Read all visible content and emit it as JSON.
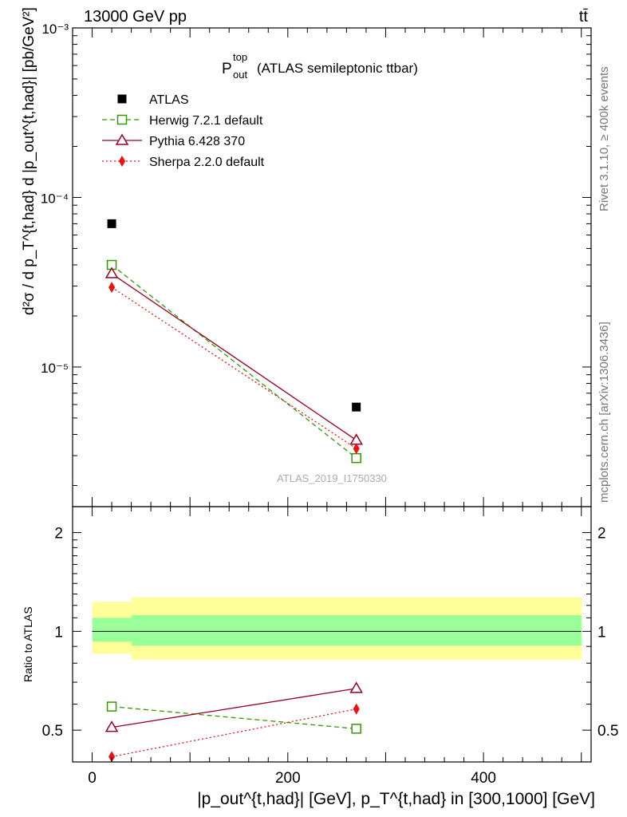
{
  "header": {
    "energy": "13000 GeV pp",
    "process": "tt̄"
  },
  "side": {
    "rivet": "Rivet 3.1.10, ≥ 400k events",
    "mcplots": "mcplots.cern.ch [arXiv:1306.3436]"
  },
  "labels": {
    "title_main": "P",
    "title_sup": "top",
    "title_sub": "out",
    "title_rest": "(ATLAS semileptonic ttbar)",
    "ylabel_text": "d²σ / d p_T^{t,had} d |p_out^{t,had}| [pb/GeV²]",
    "ratio_ylabel": "Ratio to ATLAS",
    "xlabel_text": "|p_out^{t,had}| [GeV], p_T^{t,had} in [300,1000] [GeV]",
    "watermark": "ATLAS_2019_I1750330"
  },
  "chart_data": {
    "type": "scatter",
    "title": "P_out^top (ATLAS semileptonic ttbar)",
    "xlabel": "|p_out^{t,had}| [GeV], p_T^{t,had} in [300,1000] [GeV]",
    "ylabel": "d²σ / d p_T^{t,had} d |p_out^{t,had}| [pb/GeV²]",
    "xlim": [
      -20,
      510
    ],
    "main": {
      "yscale": "log",
      "ylim": [
        1.5e-06,
        0.001
      ],
      "ytick_labels": [
        "10⁻⁵",
        "10⁻⁴",
        "10⁻³"
      ],
      "series": [
        {
          "name": "ATLAS",
          "style": "data",
          "color": "#000000",
          "x": [
            20,
            270
          ],
          "y": [
            7e-05,
            5.8e-06
          ]
        },
        {
          "name": "Herwig 7.2.1 default",
          "style": "dashed",
          "marker": "open-square",
          "color": "#339900",
          "x": [
            20,
            270
          ],
          "y": [
            4e-05,
            2.9e-06
          ]
        },
        {
          "name": "Pythia 6.428 370",
          "style": "solid",
          "marker": "open-triangle",
          "color": "#990022",
          "x": [
            20,
            270
          ],
          "y": [
            3.55e-05,
            3.7e-06
          ]
        },
        {
          "name": "Sherpa 2.2.0 default",
          "style": "dotted",
          "marker": "filled-diamond",
          "color": "#ee1111",
          "x": [
            20,
            270
          ],
          "y": [
            2.95e-05,
            3.3e-06
          ]
        }
      ]
    },
    "ratio": {
      "ylabel": "Ratio to ATLAS",
      "yscale": "log",
      "ylim": [
        0.4,
        2.4
      ],
      "ytick_labels": [
        "0.5",
        "1",
        "2"
      ],
      "xtick_labels": [
        "0",
        "200",
        "400"
      ],
      "bands": [
        {
          "name": "2-sigma",
          "color": "#ffff99",
          "segments": [
            {
              "x": [
                0,
                40
              ],
              "lo": 0.855,
              "hi": 1.23
            },
            {
              "x": [
                40,
                500
              ],
              "lo": 0.82,
              "hi": 1.27
            }
          ]
        },
        {
          "name": "1-sigma",
          "color": "#99ff99",
          "segments": [
            {
              "x": [
                0,
                40
              ],
              "lo": 0.93,
              "hi": 1.1
            },
            {
              "x": [
                40,
                500
              ],
              "lo": 0.905,
              "hi": 1.12
            }
          ]
        }
      ],
      "series": [
        {
          "name": "Herwig 7.2.1 default",
          "style": "dashed",
          "marker": "open-square",
          "color": "#339900",
          "x": [
            20,
            270
          ],
          "y": [
            0.59,
            0.505
          ]
        },
        {
          "name": "Pythia 6.428 370",
          "style": "solid",
          "marker": "open-triangle",
          "color": "#990022",
          "x": [
            20,
            270
          ],
          "y": [
            0.51,
            0.67
          ]
        },
        {
          "name": "Sherpa 2.2.0 default",
          "style": "dotted",
          "marker": "filled-diamond",
          "color": "#ee1111",
          "x": [
            20,
            270
          ],
          "y": [
            0.415,
            0.58
          ]
        }
      ]
    }
  }
}
